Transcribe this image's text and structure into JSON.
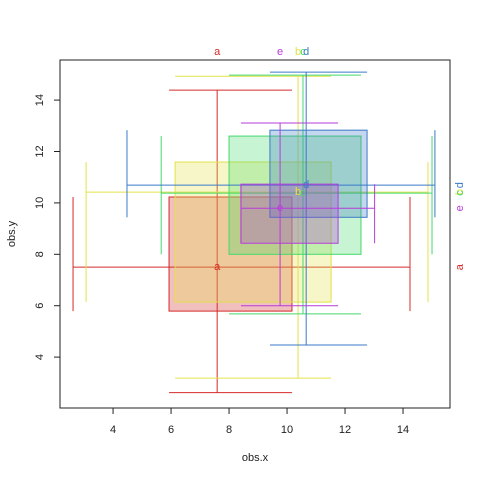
{
  "chart_data": {
    "type": "box-errorbar",
    "x_label": "obs.x",
    "y_label": "obs.y",
    "xlim": [
      2.17,
      15.62
    ],
    "ylim": [
      2.02,
      15.56
    ],
    "xticks": [
      4,
      6,
      8,
      10,
      12,
      14
    ],
    "yticks": [
      4,
      6,
      8,
      10,
      12,
      14
    ],
    "groups": [
      {
        "name": "a",
        "color": "#d42a2a",
        "x": 7.59,
        "y": 7.5,
        "xbox": [
          5.93,
          10.17
        ],
        "ybox": [
          5.79,
          10.23
        ],
        "xerr": [
          2.62,
          14.24
        ],
        "yerr": [
          2.62,
          14.39
        ]
      },
      {
        "name": "b",
        "color": "#e2e24a",
        "x": 10.38,
        "y": 10.42,
        "xbox": [
          6.14,
          11.52
        ],
        "ybox": [
          6.14,
          11.59
        ],
        "xerr": [
          3.07,
          14.86
        ],
        "yerr": [
          3.18,
          14.93
        ]
      },
      {
        "name": "c",
        "color": "#44d96a",
        "x": 10.55,
        "y": 10.38,
        "xbox": [
          8.0,
          12.55
        ],
        "ybox": [
          8.0,
          12.6
        ],
        "xerr": [
          5.66,
          15.0
        ],
        "yerr": [
          5.68,
          14.97
        ]
      },
      {
        "name": "d",
        "color": "#3a7ac8",
        "x": 10.66,
        "y": 10.69,
        "xbox": [
          9.41,
          12.76
        ],
        "ybox": [
          9.44,
          12.83
        ],
        "xerr": [
          4.48,
          15.1
        ],
        "yerr": [
          4.47,
          15.09
        ]
      },
      {
        "name": "e",
        "color": "#b63cd8",
        "x": 9.76,
        "y": 9.79,
        "xbox": [
          8.41,
          11.76
        ],
        "ybox": [
          8.43,
          10.73
        ],
        "xerr": [
          8.41,
          13.02
        ],
        "yerr": [
          6.0,
          13.11
        ]
      }
    ]
  }
}
